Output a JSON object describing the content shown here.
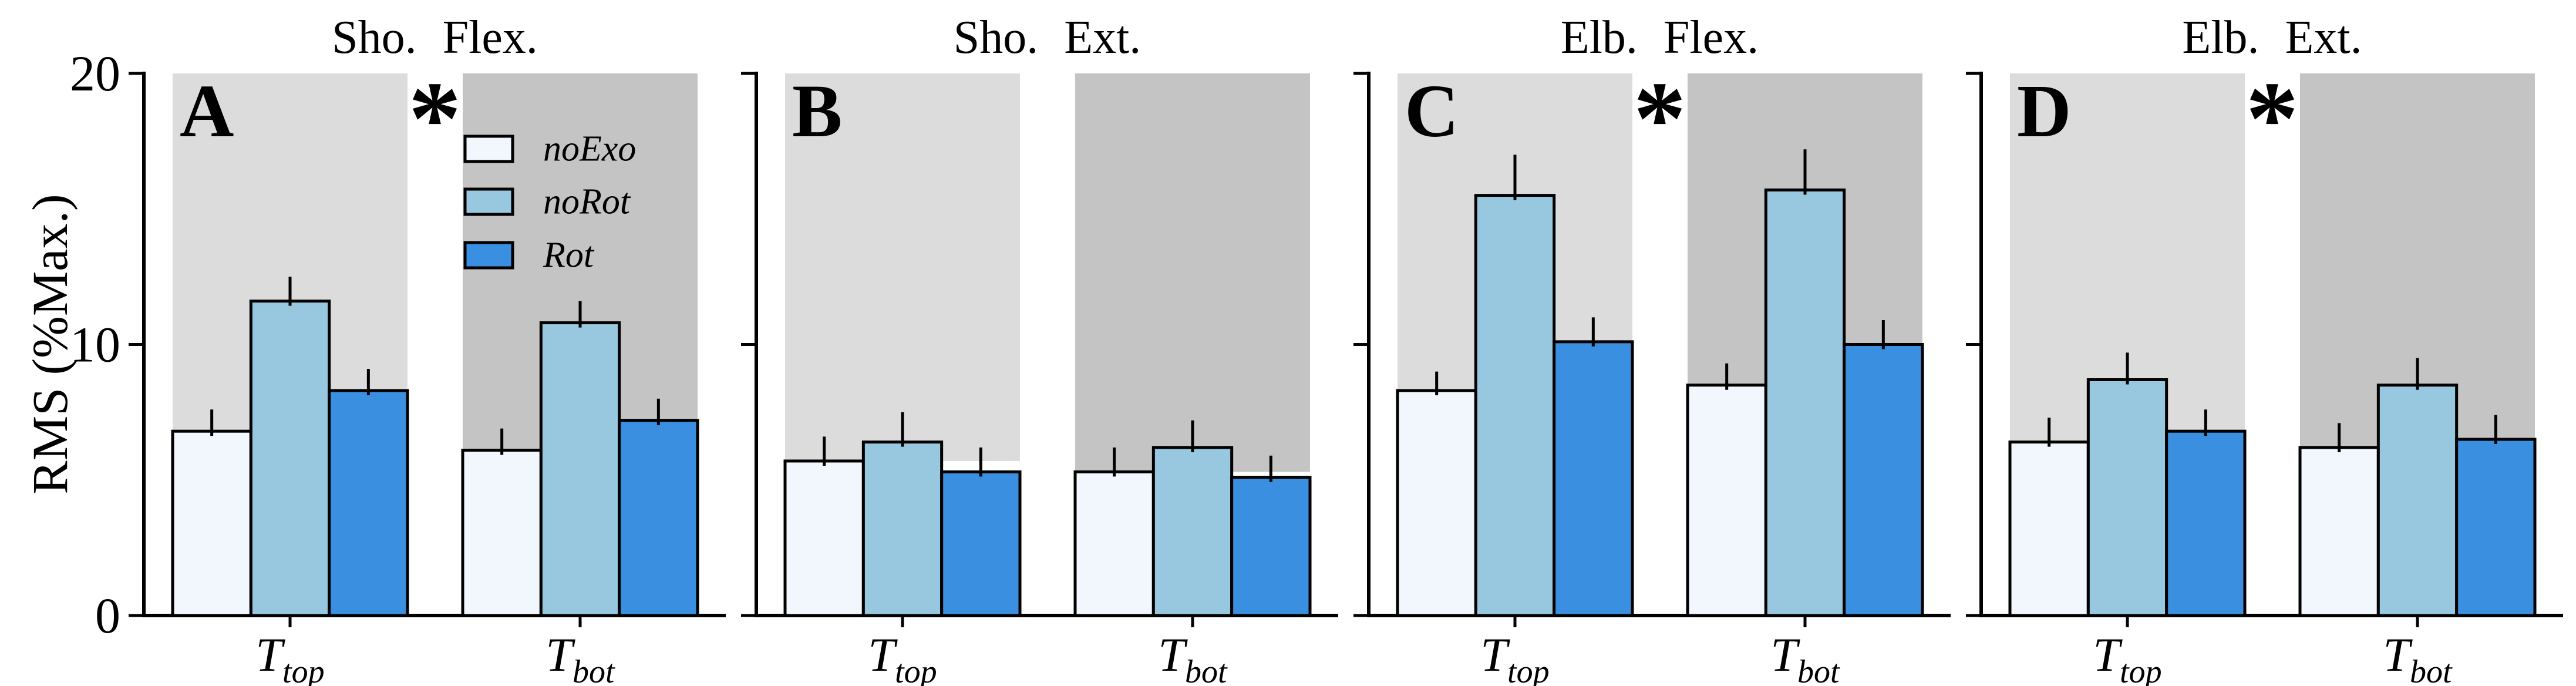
{
  "chart_data": {
    "type": "bar",
    "ylabel": "RMS (%Max.)",
    "ylim": [
      0,
      20
    ],
    "yticks": [
      0,
      10,
      20
    ],
    "ytick_labels": [
      "0",
      "10",
      "20"
    ],
    "categories": [
      {
        "symbol": "T",
        "subscript": "top"
      },
      {
        "symbol": "T",
        "subscript": "bot"
      }
    ],
    "series": [
      "noExo",
      "noRot",
      "Rot"
    ],
    "significance_marker": "*",
    "legend": {
      "entries": [
        "noExo",
        "noRot",
        "Rot"
      ],
      "location": "panel A, upper right"
    },
    "colors": {
      "noExo": "#F2F7FD",
      "noRot": "#97C8E0",
      "Rot": "#3B8FE0",
      "shade_Ttop": "#DCDCDC",
      "shade_Tbot": "#C4C4C4",
      "outline": "#000000"
    },
    "shading": "gray band behind each group spans from the top of its noExo bar up to the axes top (y=20); lighter gray for T_top, darker gray for T_bot",
    "panels": [
      {
        "label": "A",
        "title": "Sho. Flex.",
        "significant": true,
        "groups": [
          {
            "category": "T_top",
            "values": [
              6.8,
              11.6,
              8.3
            ],
            "errors": [
              0.8,
              0.9,
              0.8
            ]
          },
          {
            "category": "T_bot",
            "values": [
              6.1,
              10.8,
              7.2
            ],
            "errors": [
              0.8,
              0.8,
              0.8
            ]
          }
        ]
      },
      {
        "label": "B",
        "title": "Sho. Ext.",
        "significant": false,
        "groups": [
          {
            "category": "T_top",
            "values": [
              5.7,
              6.4,
              5.3
            ],
            "errors": [
              0.9,
              1.1,
              0.9
            ]
          },
          {
            "category": "T_bot",
            "values": [
              5.3,
              6.2,
              5.1
            ],
            "errors": [
              0.9,
              1.0,
              0.8
            ]
          }
        ]
      },
      {
        "label": "C",
        "title": "Elb. Flex.",
        "significant": true,
        "groups": [
          {
            "category": "T_top",
            "values": [
              8.3,
              15.5,
              10.1
            ],
            "errors": [
              0.7,
              1.5,
              0.9
            ]
          },
          {
            "category": "T_bot",
            "values": [
              8.5,
              15.7,
              10.0
            ],
            "errors": [
              0.8,
              1.5,
              0.9
            ]
          }
        ]
      },
      {
        "label": "D",
        "title": "Elb. Ext.",
        "significant": true,
        "groups": [
          {
            "category": "T_top",
            "values": [
              6.4,
              8.7,
              6.8
            ],
            "errors": [
              0.9,
              1.0,
              0.8
            ]
          },
          {
            "category": "T_bot",
            "values": [
              6.2,
              8.5,
              6.5
            ],
            "errors": [
              0.9,
              1.0,
              0.9
            ]
          }
        ]
      }
    ]
  }
}
